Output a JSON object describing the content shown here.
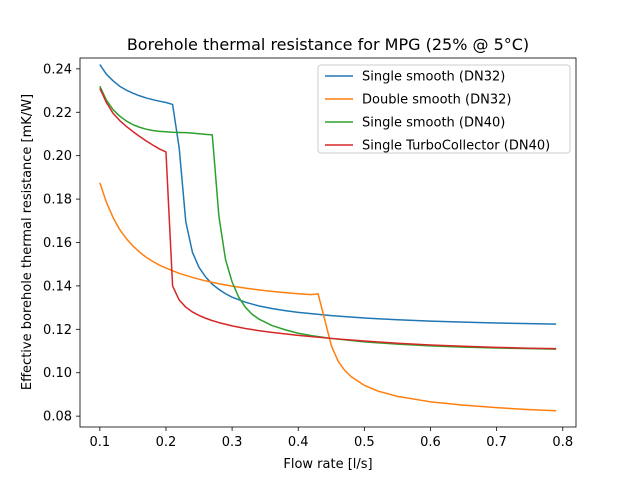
{
  "chart_data": {
    "type": "line",
    "title": "Borehole thermal resistance for MPG (25% @ 5°C)",
    "xlabel": "Flow rate [l/s]",
    "ylabel": "Effective borehole thermal resistance [mK/W]",
    "xlim": [
      0.07,
      0.82
    ],
    "ylim": [
      0.075,
      0.245
    ],
    "xticks": [
      0.1,
      0.2,
      0.3,
      0.4,
      0.5,
      0.6,
      0.7,
      0.8
    ],
    "xtick_labels": [
      "0.1",
      "0.2",
      "0.3",
      "0.4",
      "0.5",
      "0.6",
      "0.7",
      "0.8"
    ],
    "yticks": [
      0.08,
      0.1,
      0.12,
      0.14,
      0.16,
      0.18,
      0.2,
      0.22,
      0.24
    ],
    "ytick_labels": [
      "0.08",
      "0.10",
      "0.12",
      "0.14",
      "0.16",
      "0.18",
      "0.20",
      "0.22",
      "0.24"
    ],
    "grid": false,
    "legend_position": "top-right",
    "series": [
      {
        "name": "Single smooth (DN32)",
        "color": "#1f77b4",
        "x": [
          0.1,
          0.11,
          0.12,
          0.13,
          0.14,
          0.15,
          0.16,
          0.17,
          0.18,
          0.19,
          0.2,
          0.21,
          0.22,
          0.23,
          0.24,
          0.25,
          0.26,
          0.27,
          0.28,
          0.29,
          0.3,
          0.32,
          0.34,
          0.36,
          0.38,
          0.4,
          0.45,
          0.5,
          0.55,
          0.6,
          0.65,
          0.7,
          0.75,
          0.79
        ],
        "y": [
          0.242,
          0.2375,
          0.2345,
          0.232,
          0.2302,
          0.2288,
          0.2276,
          0.2266,
          0.2258,
          0.2251,
          0.2245,
          0.2236,
          0.2035,
          0.1695,
          0.1555,
          0.1485,
          0.1441,
          0.1408,
          0.1384,
          0.1364,
          0.1348,
          0.1325,
          0.1308,
          0.1296,
          0.1286,
          0.1278,
          0.1263,
          0.1252,
          0.1244,
          0.1238,
          0.1233,
          0.1229,
          0.1226,
          0.1224
        ]
      },
      {
        "name": "Double smooth (DN32)",
        "color": "#ff7f0e",
        "x": [
          0.1,
          0.11,
          0.12,
          0.13,
          0.14,
          0.15,
          0.16,
          0.17,
          0.18,
          0.19,
          0.2,
          0.22,
          0.24,
          0.26,
          0.28,
          0.3,
          0.32,
          0.34,
          0.36,
          0.38,
          0.4,
          0.42,
          0.43,
          0.44,
          0.45,
          0.46,
          0.47,
          0.48,
          0.5,
          0.52,
          0.55,
          0.6,
          0.65,
          0.7,
          0.75,
          0.79
        ],
        "y": [
          0.1875,
          0.1785,
          0.1715,
          0.166,
          0.1618,
          0.1584,
          0.1556,
          0.1532,
          0.1513,
          0.1496,
          0.1482,
          0.1458,
          0.1439,
          0.1423,
          0.141,
          0.1399,
          0.139,
          0.1382,
          0.1375,
          0.1369,
          0.1364,
          0.136,
          0.1364,
          0.1245,
          0.1125,
          0.1055,
          0.1012,
          0.0982,
          0.0942,
          0.0916,
          0.0891,
          0.0866,
          0.0851,
          0.0839,
          0.083,
          0.0825
        ]
      },
      {
        "name": "Single smooth (DN40)",
        "color": "#2ca02c",
        "x": [
          0.1,
          0.11,
          0.12,
          0.13,
          0.14,
          0.15,
          0.16,
          0.17,
          0.18,
          0.19,
          0.2,
          0.21,
          0.22,
          0.23,
          0.24,
          0.25,
          0.26,
          0.27,
          0.28,
          0.29,
          0.3,
          0.31,
          0.32,
          0.33,
          0.34,
          0.36,
          0.38,
          0.4,
          0.42,
          0.45,
          0.5,
          0.55,
          0.6,
          0.65,
          0.7,
          0.75,
          0.79
        ],
        "y": [
          0.232,
          0.2255,
          0.2212,
          0.2182,
          0.216,
          0.2143,
          0.2131,
          0.2122,
          0.2116,
          0.2112,
          0.211,
          0.2108,
          0.2107,
          0.2106,
          0.2104,
          0.2101,
          0.2098,
          0.2096,
          0.1722,
          0.1522,
          0.1418,
          0.1348,
          0.1302,
          0.127,
          0.1248,
          0.1218,
          0.1198,
          0.1182,
          0.1171,
          0.1158,
          0.1142,
          0.1132,
          0.1124,
          0.1118,
          0.1114,
          0.1111,
          0.1109
        ]
      },
      {
        "name": "Single TurboCollector (DN40)",
        "color": "#d62728",
        "x": [
          0.1,
          0.11,
          0.12,
          0.13,
          0.14,
          0.15,
          0.16,
          0.17,
          0.18,
          0.19,
          0.2,
          0.21,
          0.22,
          0.23,
          0.24,
          0.25,
          0.26,
          0.27,
          0.28,
          0.3,
          0.32,
          0.34,
          0.36,
          0.38,
          0.4,
          0.45,
          0.5,
          0.55,
          0.6,
          0.65,
          0.7,
          0.75,
          0.79
        ],
        "y": [
          0.231,
          0.2245,
          0.2195,
          0.2162,
          0.2135,
          0.2111,
          0.2089,
          0.2068,
          0.2049,
          0.2031,
          0.2017,
          0.14,
          0.1335,
          0.1302,
          0.128,
          0.1264,
          0.1251,
          0.124,
          0.1231,
          0.1216,
          0.1204,
          0.1194,
          0.1186,
          0.1179,
          0.1172,
          0.1158,
          0.1146,
          0.1136,
          0.1128,
          0.1122,
          0.1117,
          0.1113,
          0.1111
        ]
      }
    ]
  }
}
